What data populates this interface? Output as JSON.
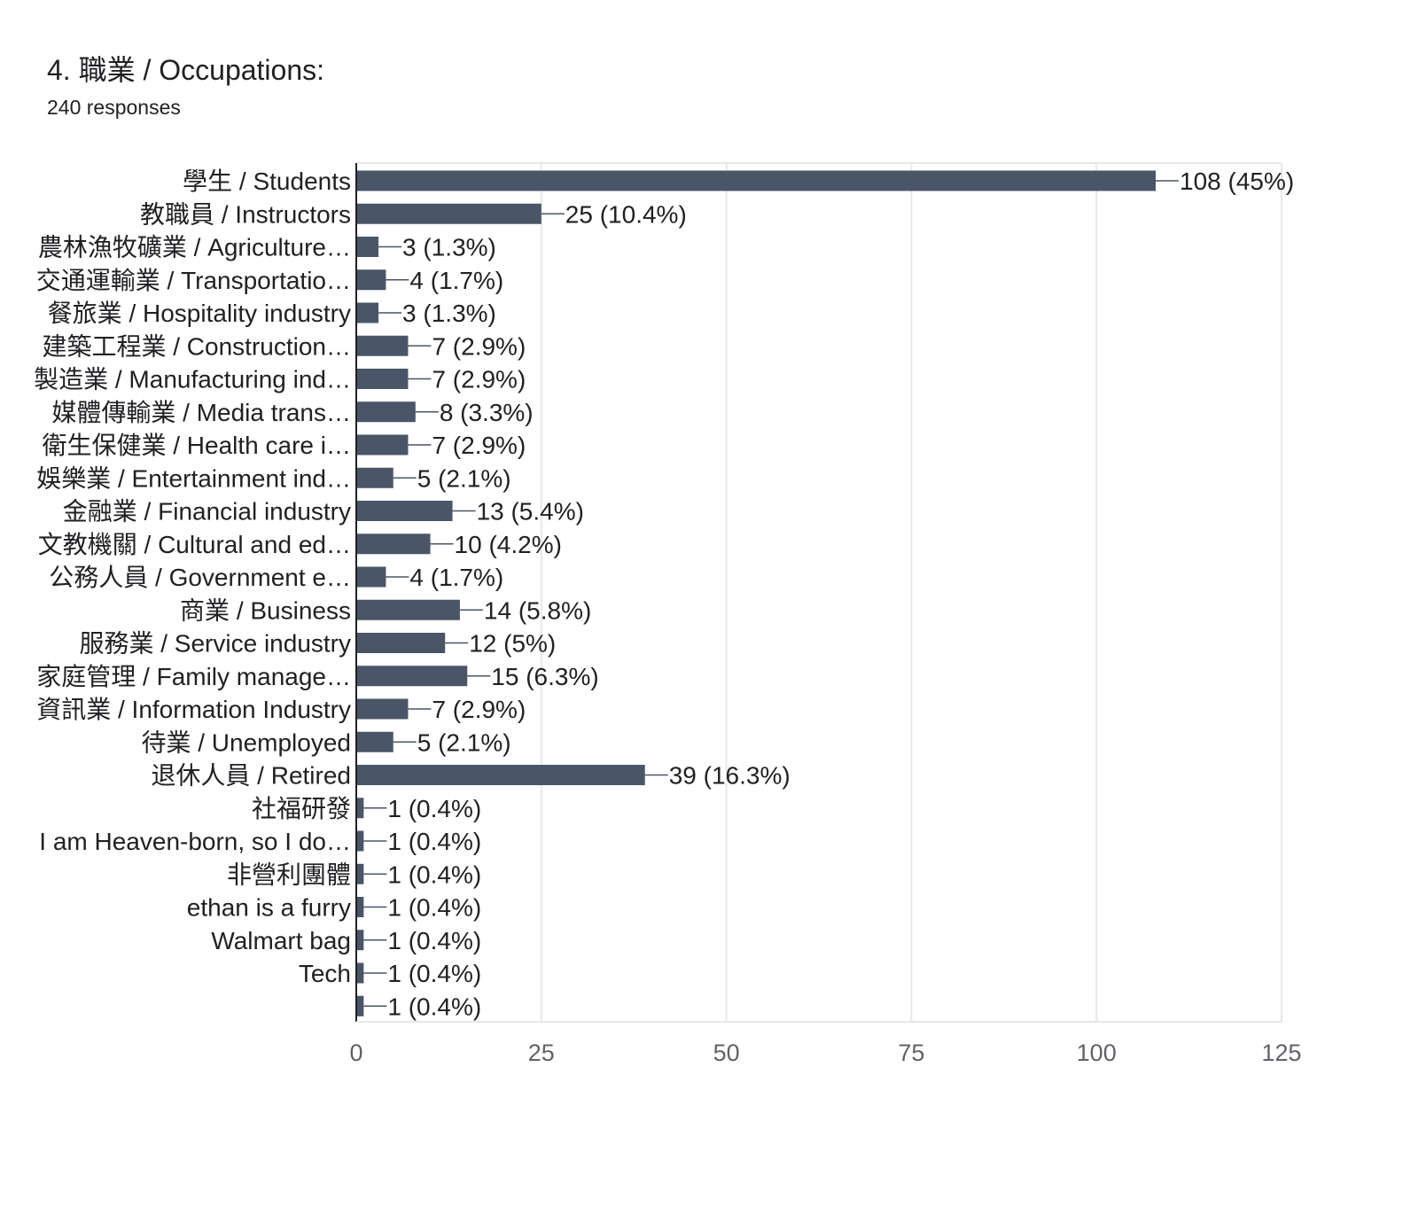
{
  "question": {
    "title": "4. 職業 / Occupations:",
    "responses": "240 responses"
  },
  "colors": {
    "bar": "#4a5568",
    "grid": "#e8e8e8",
    "axis": "#202124",
    "tick": "#5f6368",
    "label": "#202124"
  },
  "chart_data": {
    "type": "bar",
    "orientation": "horizontal",
    "title": "",
    "xlabel": "",
    "ylabel": "",
    "xlim": [
      0,
      125
    ],
    "xticks": [
      0,
      25,
      50,
      75,
      100,
      125
    ],
    "grid": true,
    "categories": [
      "學生 / Students",
      "教職員 / Instructors",
      "農林漁牧礦業 / Agriculture…",
      "交通運輸業 / Transportatio…",
      "餐旅業 / Hospitality industry",
      "建築工程業 / Construction…",
      "製造業 / Manufacturing ind…",
      "媒體傳輸業 / Media trans…",
      "衛生保健業 / Health care i…",
      "娛樂業 / Entertainment ind…",
      "金融業 / Financial industry",
      "文教機關 / Cultural and ed…",
      "公務人員 / Government e…",
      "商業 / Business",
      "服務業 / Service industry",
      "家庭管理 / Family manage…",
      "資訊業 / Information Industry",
      "待業 / Unemployed",
      "退休人員 / Retired",
      "社福研發",
      "I am Heaven-born, so I do…",
      "非營利團體",
      "ethan is a furry",
      "Walmart bag",
      "Tech",
      ""
    ],
    "values": [
      108,
      25,
      3,
      4,
      3,
      7,
      7,
      8,
      7,
      5,
      13,
      10,
      4,
      14,
      12,
      15,
      7,
      5,
      39,
      1,
      1,
      1,
      1,
      1,
      1,
      1
    ],
    "data_labels": [
      "108 (45%)",
      "25 (10.4%)",
      "3 (1.3%)",
      "4 (1.7%)",
      "3 (1.3%)",
      "7 (2.9%)",
      "7 (2.9%)",
      "8 (3.3%)",
      "7 (2.9%)",
      "5 (2.1%)",
      "13 (5.4%)",
      "10 (4.2%)",
      "4 (1.7%)",
      "14 (5.8%)",
      "12 (5%)",
      "15 (6.3%)",
      "7 (2.9%)",
      "5 (2.1%)",
      "39 (16.3%)",
      "1 (0.4%)",
      "1 (0.4%)",
      "1 (0.4%)",
      "1 (0.4%)",
      "1 (0.4%)",
      "1 (0.4%)",
      "1 (0.4%)"
    ]
  }
}
